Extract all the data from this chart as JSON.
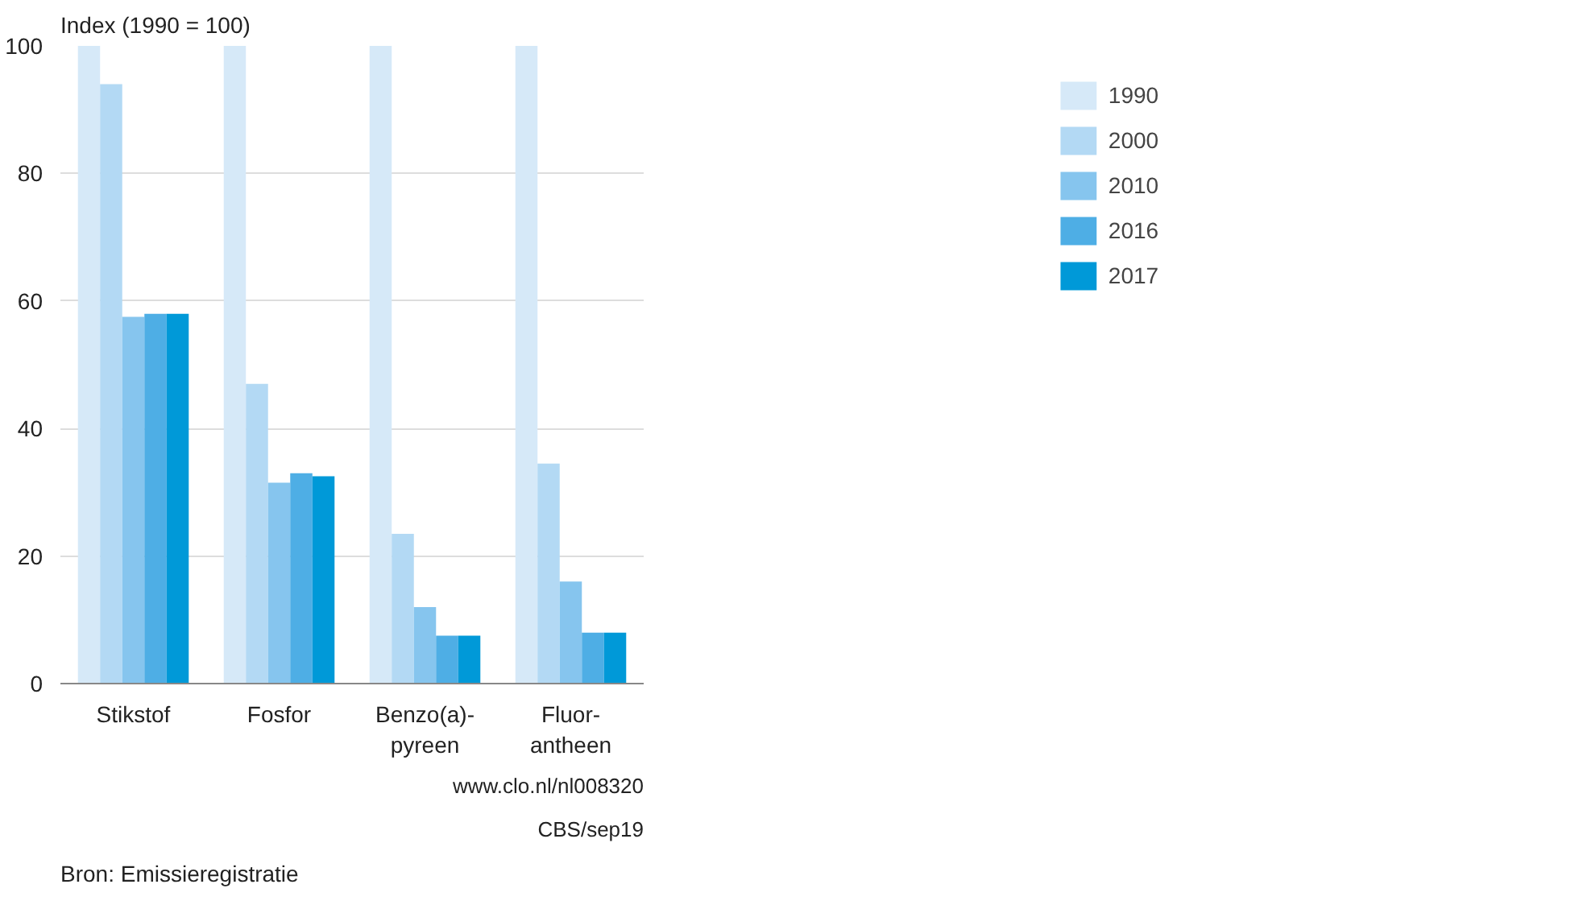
{
  "chart_data": {
    "type": "bar",
    "ylabel": "Index (1990 = 100)",
    "categories": [
      "Stikstof",
      "Fosfor",
      "Benzo(a)-\npyreen",
      "Fluor-\nantheen"
    ],
    "series": [
      {
        "name": "1990",
        "color": "#d6e9f8",
        "values": [
          100,
          100,
          100,
          100
        ]
      },
      {
        "name": "2000",
        "color": "#b3d9f4",
        "values": [
          94,
          47,
          23.5,
          34.5
        ]
      },
      {
        "name": "2010",
        "color": "#86c5ee",
        "values": [
          57.5,
          31.5,
          12,
          16
        ]
      },
      {
        "name": "2016",
        "color": "#4eaee5",
        "values": [
          58,
          33,
          7.5,
          8
        ]
      },
      {
        "name": "2017",
        "color": "#0099d8",
        "values": [
          58,
          32.5,
          7.5,
          8
        ]
      }
    ],
    "ylim": [
      0,
      100
    ],
    "yticks": [
      0,
      20,
      40,
      60,
      80,
      100
    ],
    "grid": "y",
    "legend": "top right",
    "annotations": [
      "Bron: Emissieregistratie",
      "CBS/sep19",
      "www.clo.nl/nl008320"
    ]
  }
}
